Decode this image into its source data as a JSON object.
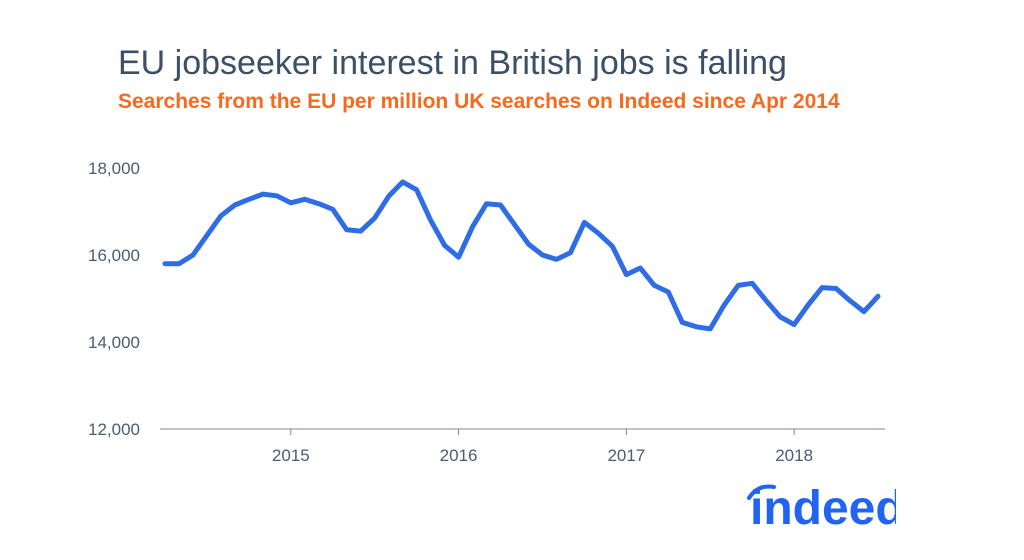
{
  "header": {
    "title": "EU jobseeker interest in British jobs is falling",
    "subtitle": "Searches from the EU per million UK searches on Indeed since Apr 2014"
  },
  "brand": {
    "logo_text": "indeed",
    "logo_color": "#2164f3"
  },
  "colors": {
    "line": "#2f6de6",
    "axis": "#4a5d73",
    "title": "#3b4f66",
    "subtitle": "#f56a1d"
  },
  "chart_data": {
    "type": "line",
    "title": "EU jobseeker interest in British jobs is falling",
    "subtitle": "Searches from the EU per million UK searches on Indeed since Apr 2014",
    "xlabel": "",
    "ylabel": "",
    "x_start": "2014-04",
    "x_ticks": [
      "2015",
      "2016",
      "2017",
      "2018"
    ],
    "x_tick_months": [
      "2015-01",
      "2016-01",
      "2017-01",
      "2018-01"
    ],
    "y_ticks": [
      "12,000",
      "14,000",
      "16,000",
      "18,000"
    ],
    "y_tick_values": [
      12000,
      14000,
      16000,
      18000
    ],
    "ylim": [
      12000,
      18000
    ],
    "xlim": [
      "2014-04",
      "2018-07"
    ],
    "grid": false,
    "legend": "none",
    "series": [
      {
        "x": [
          "2014-04",
          "2014-05",
          "2014-06",
          "2014-07",
          "2014-08",
          "2014-09",
          "2014-10",
          "2014-11",
          "2014-12",
          "2015-01",
          "2015-02",
          "2015-03",
          "2015-04",
          "2015-05",
          "2015-06",
          "2015-07",
          "2015-08",
          "2015-09",
          "2015-10",
          "2015-11",
          "2015-12",
          "2016-01",
          "2016-02",
          "2016-03",
          "2016-04",
          "2016-05",
          "2016-06",
          "2016-07",
          "2016-08",
          "2016-09",
          "2016-10",
          "2016-11",
          "2016-12",
          "2017-01",
          "2017-02",
          "2017-03",
          "2017-04",
          "2017-05",
          "2017-06",
          "2017-07",
          "2017-08",
          "2017-09",
          "2017-10",
          "2017-11",
          "2017-12",
          "2018-01",
          "2018-02",
          "2018-03",
          "2018-04",
          "2018-05",
          "2018-06",
          "2018-07"
        ],
        "values": [
          15800,
          15800,
          16000,
          16450,
          16900,
          17150,
          17280,
          17400,
          17360,
          17200,
          17280,
          17180,
          17050,
          16580,
          16550,
          16850,
          17350,
          17680,
          17500,
          16800,
          16220,
          15950,
          16650,
          17180,
          17150,
          16700,
          16250,
          16000,
          15900,
          16050,
          16750,
          16500,
          16200,
          15550,
          15700,
          15300,
          15150,
          14450,
          14350,
          14300,
          14850,
          15300,
          15350,
          14950,
          14580,
          14400,
          14850,
          15250,
          15230,
          14950,
          14700,
          15050
        ]
      }
    ]
  }
}
